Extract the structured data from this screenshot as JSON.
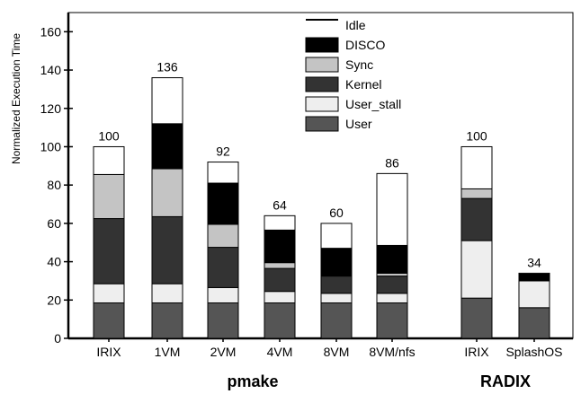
{
  "chart_data": {
    "type": "bar",
    "stacked": true,
    "title": "",
    "xlabel": "",
    "ylabel": "Normalized Execution Time",
    "ylim": [
      0,
      170
    ],
    "yticks": [
      0,
      20,
      40,
      60,
      80,
      100,
      120,
      140,
      160
    ],
    "grid": false,
    "legend_position": "top-center",
    "categories": [
      "IRIX",
      "1VM",
      "2VM",
      "4VM",
      "8VM",
      "8VM/nfs",
      "IRIX",
      "SplashOS"
    ],
    "groups": [
      {
        "name": "pmake",
        "categories": [
          0,
          1,
          2,
          3,
          4,
          5
        ]
      },
      {
        "name": "RADIX",
        "categories": [
          6,
          7
        ]
      }
    ],
    "totals": [
      "100",
      "136",
      "92",
      "64",
      "60",
      "86",
      "100",
      "34"
    ],
    "series": [
      {
        "name": "User",
        "color": "#555555",
        "values": [
          18.5,
          18.5,
          18.5,
          18.5,
          18.5,
          18.5,
          21,
          16
        ]
      },
      {
        "name": "User_stall",
        "color": "#eeeeee",
        "values": [
          10,
          10,
          8,
          6,
          5,
          5,
          30,
          14
        ]
      },
      {
        "name": "Kernel",
        "color": "#333333",
        "values": [
          34,
          35,
          21,
          12,
          9,
          9,
          22,
          0
        ]
      },
      {
        "name": "Sync",
        "color": "#c4c4c4",
        "values": [
          23,
          25,
          12,
          3,
          0,
          1.5,
          5,
          0
        ]
      },
      {
        "name": "DISCO",
        "color": "#000000",
        "values": [
          0,
          23.5,
          21.5,
          17,
          14.5,
          14.5,
          0,
          3.5
        ]
      },
      {
        "name": "Idle",
        "color": "#ffffff",
        "values": [
          14.5,
          24,
          11,
          7.5,
          13,
          37.5,
          22,
          0.5
        ]
      }
    ],
    "legend_order": [
      "Idle",
      "DISCO",
      "Sync",
      "Kernel",
      "User_stall",
      "User"
    ]
  }
}
